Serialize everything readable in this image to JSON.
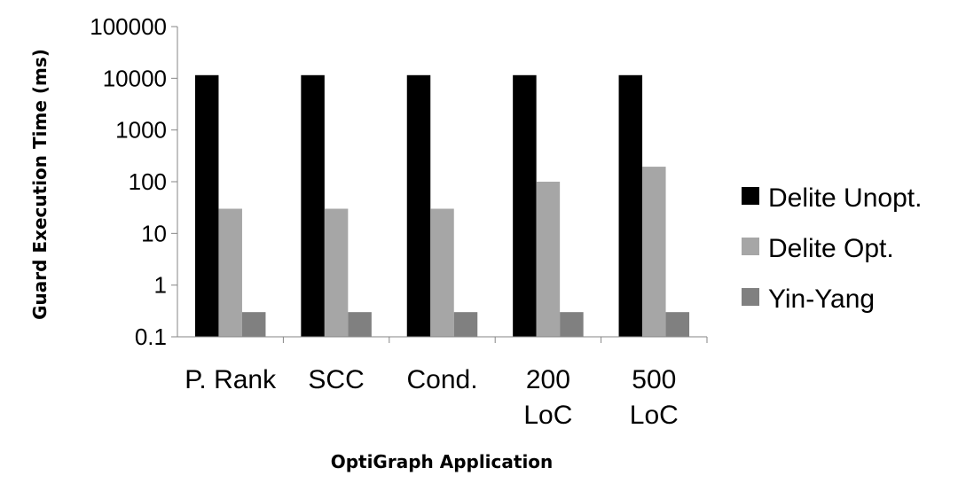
{
  "chart_data": {
    "type": "bar",
    "scale": "log",
    "ylim": [
      0.1,
      100000
    ],
    "yticks": [
      "100000",
      "10000",
      "1000",
      "100",
      "10",
      "1",
      "0.1"
    ],
    "ytick_values": [
      100000,
      10000,
      1000,
      100,
      10,
      1,
      0.1
    ],
    "ylabel": "Guard Execution Time (ms)",
    "xlabel": "OptiGraph Application",
    "categories": [
      [
        "P. Rank"
      ],
      [
        "SCC"
      ],
      [
        "Cond."
      ],
      [
        "200",
        "LoC"
      ],
      [
        "500",
        "LoC"
      ]
    ],
    "grid": false,
    "legend_position": "right",
    "series": [
      {
        "name": "Delite Unopt.",
        "color": "#000000",
        "values": [
          11500,
          11500,
          11500,
          11500,
          11500
        ]
      },
      {
        "name": "Delite Opt.",
        "color": "#a6a6a6",
        "values": [
          30,
          30,
          30,
          100,
          195
        ]
      },
      {
        "name": "Yin-Yang",
        "color": "#808080",
        "values": [
          0.3,
          0.3,
          0.3,
          0.3,
          0.3
        ]
      }
    ]
  }
}
